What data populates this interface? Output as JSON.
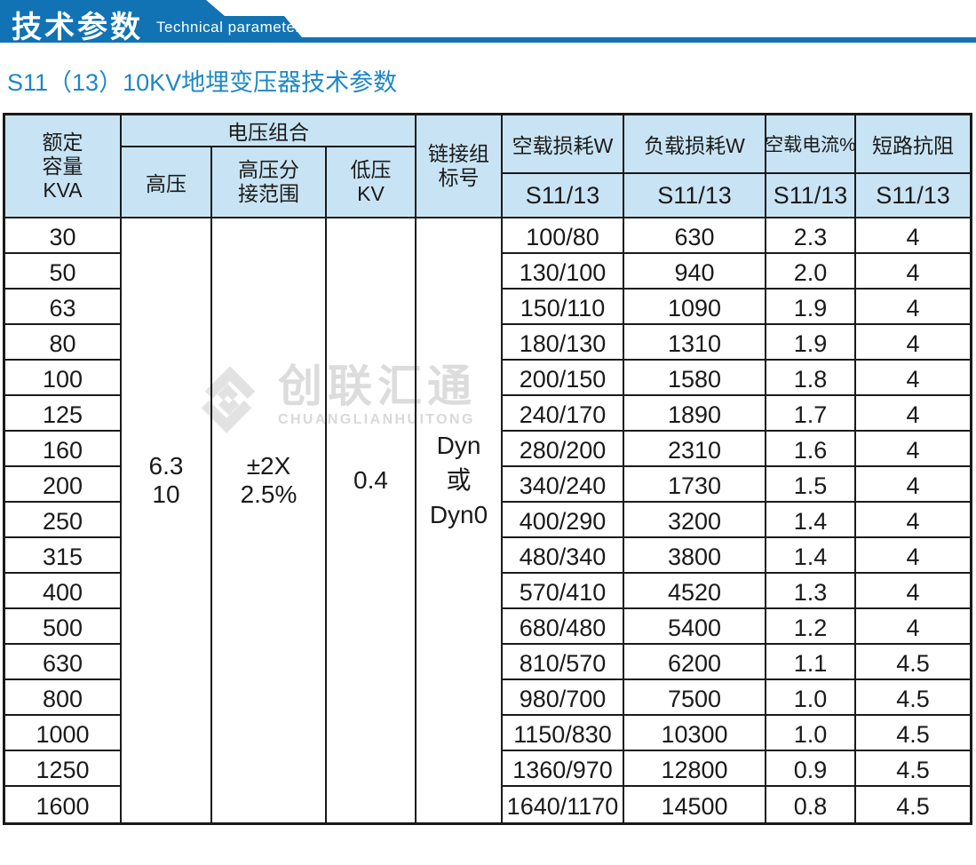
{
  "banner": {
    "title": "技术参数",
    "subtitle": "Technical parameter"
  },
  "page_title": "S11（13）10KV地埋变压器技术参数",
  "colors": {
    "banner_blue": "#1173b4",
    "title_blue": "#1d87c8",
    "header_bg": "#c8e4f4",
    "border": "#1a1a1a",
    "watermark_gray": "#dcdcdc"
  },
  "watermark": {
    "name_zh": "创联汇通",
    "name_en": "CHUANGLIANHUITONG"
  },
  "table": {
    "headers": {
      "capacity_lines": [
        "额定",
        "容量",
        "KVA"
      ],
      "voltage_group": "电压组合",
      "hv": "高压",
      "hv_tap_lines": [
        "高压分",
        "接范围"
      ],
      "lv_lines": [
        "低压",
        "KV"
      ],
      "vector_lines": [
        "链接组",
        "标号"
      ],
      "no_load_loss": "空载损耗W",
      "load_loss": "负载损耗W",
      "no_load_current": "空载电流%",
      "impedance": "短路抗阻",
      "model": "S11/13"
    },
    "merged": {
      "hv_lines": [
        "6.3",
        "10"
      ],
      "hv_tap_lines": [
        "±2X",
        "2.5%"
      ],
      "lv_lines": [
        "0.4"
      ],
      "vector_lines": [
        "Dyn",
        "或",
        "Dyn0"
      ]
    },
    "rows": [
      {
        "capacity": "30",
        "no_load_loss": "100/80",
        "load_loss": "630",
        "no_load_current": "2.3",
        "impedance": "4"
      },
      {
        "capacity": "50",
        "no_load_loss": "130/100",
        "load_loss": "940",
        "no_load_current": "2.0",
        "impedance": "4"
      },
      {
        "capacity": "63",
        "no_load_loss": "150/110",
        "load_loss": "1090",
        "no_load_current": "1.9",
        "impedance": "4"
      },
      {
        "capacity": "80",
        "no_load_loss": "180/130",
        "load_loss": "1310",
        "no_load_current": "1.9",
        "impedance": "4"
      },
      {
        "capacity": "100",
        "no_load_loss": "200/150",
        "load_loss": "1580",
        "no_load_current": "1.8",
        "impedance": "4"
      },
      {
        "capacity": "125",
        "no_load_loss": "240/170",
        "load_loss": "1890",
        "no_load_current": "1.7",
        "impedance": "4"
      },
      {
        "capacity": "160",
        "no_load_loss": "280/200",
        "load_loss": "2310",
        "no_load_current": "1.6",
        "impedance": "4"
      },
      {
        "capacity": "200",
        "no_load_loss": "340/240",
        "load_loss": "1730",
        "no_load_current": "1.5",
        "impedance": "4"
      },
      {
        "capacity": "250",
        "no_load_loss": "400/290",
        "load_loss": "3200",
        "no_load_current": "1.4",
        "impedance": "4"
      },
      {
        "capacity": "315",
        "no_load_loss": "480/340",
        "load_loss": "3800",
        "no_load_current": "1.4",
        "impedance": "4"
      },
      {
        "capacity": "400",
        "no_load_loss": "570/410",
        "load_loss": "4520",
        "no_load_current": "1.3",
        "impedance": "4"
      },
      {
        "capacity": "500",
        "no_load_loss": "680/480",
        "load_loss": "5400",
        "no_load_current": "1.2",
        "impedance": "4"
      },
      {
        "capacity": "630",
        "no_load_loss": "810/570",
        "load_loss": "6200",
        "no_load_current": "1.1",
        "impedance": "4.5"
      },
      {
        "capacity": "800",
        "no_load_loss": "980/700",
        "load_loss": "7500",
        "no_load_current": "1.0",
        "impedance": "4.5"
      },
      {
        "capacity": "1000",
        "no_load_loss": "1150/830",
        "load_loss": "10300",
        "no_load_current": "1.0",
        "impedance": "4.5"
      },
      {
        "capacity": "1250",
        "no_load_loss": "1360/970",
        "load_loss": "12800",
        "no_load_current": "0.9",
        "impedance": "4.5"
      },
      {
        "capacity": "1600",
        "no_load_loss": "1640/1170",
        "load_loss": "14500",
        "no_load_current": "0.8",
        "impedance": "4.5"
      }
    ]
  }
}
